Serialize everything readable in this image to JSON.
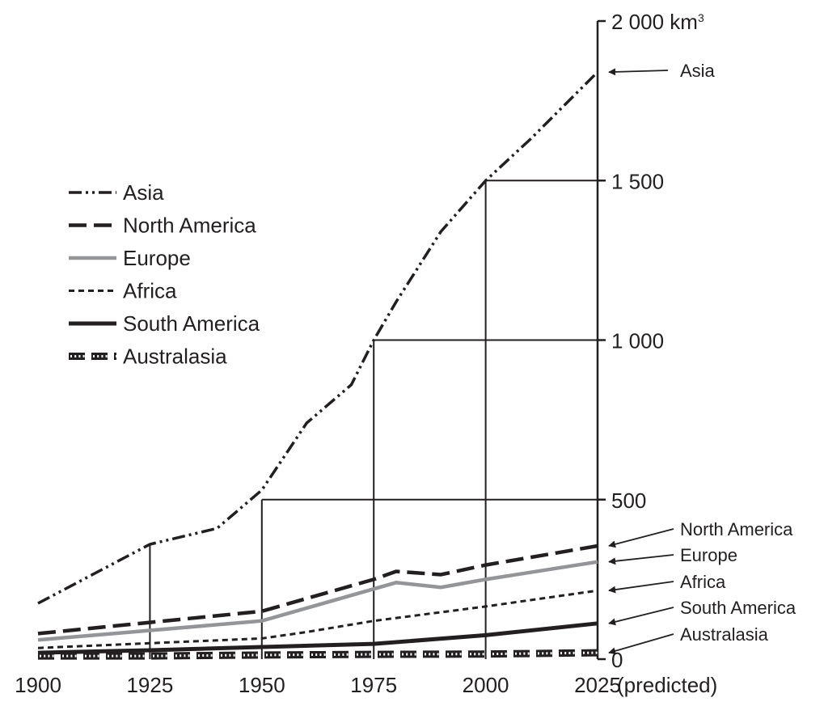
{
  "chart_data": {
    "type": "line",
    "title": "",
    "xlabel": "",
    "ylabel": "",
    "x_suffix": "(predicted)",
    "y_unit": {
      "label": "km",
      "sup": "3"
    },
    "xlim": [
      1900,
      2025
    ],
    "ylim": [
      0,
      2000
    ],
    "x_ticks": [
      {
        "value": 1900,
        "label": "1900"
      },
      {
        "value": 1925,
        "label": "1925"
      },
      {
        "value": 1950,
        "label": "1950"
      },
      {
        "value": 1975,
        "label": "1975"
      },
      {
        "value": 2000,
        "label": "2000"
      },
      {
        "value": 2025,
        "label": "2025"
      }
    ],
    "y_ticks": [
      {
        "value": 0,
        "label": "0"
      },
      {
        "value": 500,
        "label": "500"
      },
      {
        "value": 1000,
        "label": "1 000"
      },
      {
        "value": 1500,
        "label": "1 500"
      },
      {
        "value": 2000,
        "label": "2 000"
      }
    ],
    "grid": false,
    "legend_position": "left",
    "reference_drops": [
      {
        "x": 1925,
        "y": 360
      },
      {
        "x": 1950,
        "y": 500
      },
      {
        "x": 1975,
        "y": 1000
      },
      {
        "x": 2000,
        "y": 1500
      }
    ],
    "series": [
      {
        "key": "asia",
        "name": "Asia",
        "style": "dash-dot-dot",
        "color": "#231f20",
        "x": [
          1900,
          1925,
          1940,
          1950,
          1960,
          1970,
          1975,
          1980,
          1990,
          2000,
          2010,
          2025
        ],
        "y": [
          175,
          360,
          410,
          530,
          740,
          860,
          1000,
          1120,
          1340,
          1500,
          1630,
          1840
        ]
      },
      {
        "key": "north_america",
        "name": "North America",
        "style": "dashed",
        "color": "#231f20",
        "x": [
          1900,
          1925,
          1950,
          1975,
          1980,
          1990,
          2000,
          2025
        ],
        "y": [
          80,
          115,
          150,
          250,
          275,
          265,
          295,
          355
        ]
      },
      {
        "key": "europe",
        "name": "Europe",
        "style": "solid-grey",
        "color": "#939598",
        "x": [
          1900,
          1925,
          1950,
          1980,
          1990,
          2000,
          2025
        ],
        "y": [
          60,
          90,
          120,
          240,
          225,
          250,
          305
        ]
      },
      {
        "key": "africa",
        "name": "Africa",
        "style": "short-dash",
        "color": "#231f20",
        "x": [
          1900,
          1925,
          1950,
          1960,
          1975,
          2000,
          2025
        ],
        "y": [
          35,
          50,
          65,
          85,
          120,
          165,
          215
        ]
      },
      {
        "key": "south_america",
        "name": "South America",
        "style": "solid-black",
        "color": "#231f20",
        "x": [
          1900,
          1925,
          1950,
          1975,
          2000,
          2025
        ],
        "y": [
          20,
          28,
          38,
          48,
          75,
          112
        ]
      },
      {
        "key": "australasia",
        "name": "Australasia",
        "style": "dotted-band",
        "color": "#231f20",
        "x": [
          1900,
          1925,
          1950,
          1975,
          2000,
          2025
        ],
        "y": [
          10,
          10,
          13,
          15,
          16,
          20
        ]
      }
    ]
  }
}
